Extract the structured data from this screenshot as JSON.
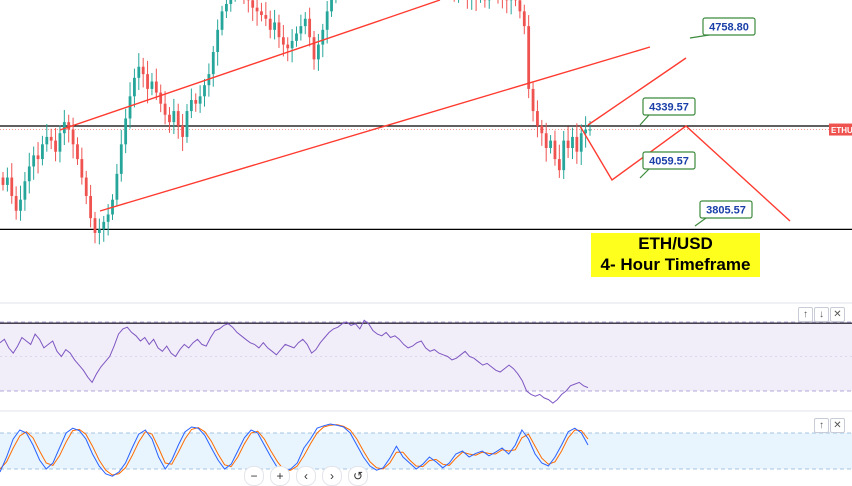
{
  "chart_data": {
    "type": "candlestick",
    "title": "ETH/USD",
    "subtitle": "4- Hour Timeframe",
    "symbol_tag": "ETHU",
    "levels": [
      {
        "label": "4758.80",
        "value": 4758.8
      },
      {
        "label": "4339.57",
        "value": 4339.57
      },
      {
        "label": "4059.57",
        "value": 4059.57
      },
      {
        "label": "3805.57",
        "value": 3805.57
      }
    ],
    "price_range": [
      3400,
      5200
    ],
    "candle_closes": [
      4180,
      4200,
      4150,
      4110,
      4140,
      4190,
      4230,
      4260,
      4250,
      4290,
      4310,
      4300,
      4270,
      4320,
      4350,
      4330,
      4290,
      4250,
      4200,
      4150,
      4090,
      4050,
      4060,
      4080,
      4100,
      4140,
      4210,
      4290,
      4360,
      4420,
      4470,
      4500,
      4480,
      4440,
      4460,
      4430,
      4400,
      4370,
      4350,
      4380,
      4340,
      4310,
      4380,
      4410,
      4400,
      4420,
      4450,
      4480,
      4540,
      4600,
      4650,
      4670,
      4700,
      4730,
      4720,
      4700,
      4680,
      4660,
      4650,
      4640,
      4630,
      4600,
      4620,
      4580,
      4560,
      4550,
      4570,
      4590,
      4610,
      4630,
      4580,
      4520,
      4560,
      4600,
      4650,
      4690,
      4720,
      4760,
      4800,
      4830,
      4850,
      4870,
      4860,
      4880,
      4840,
      4860,
      4850,
      4800,
      4830,
      4820,
      4870,
      4850,
      4790,
      4760,
      4780,
      4840,
      4810,
      4820,
      4800,
      4780,
      4700,
      4740,
      4720,
      4700,
      4740,
      4720,
      4690,
      4720,
      4690,
      4700,
      4680,
      4720,
      4740,
      4700,
      4690,
      4680,
      4700,
      4680,
      4650,
      4610,
      4440,
      4380,
      4340,
      4320,
      4280,
      4300,
      4250,
      4220,
      4300,
      4280,
      4310,
      4270,
      4320,
      4330,
      4330
    ],
    "projection_points": [
      4339.57,
      4059.57,
      4339.57,
      3805.57
    ],
    "indicators": [
      {
        "name": "RSI",
        "bounds": [
          30,
          70
        ],
        "values": [
          58,
          60,
          55,
          52,
          56,
          61,
          59,
          57,
          63,
          60,
          55,
          57,
          59,
          53,
          50,
          54,
          52,
          48,
          45,
          42,
          38,
          35,
          40,
          44,
          47,
          50,
          56,
          63,
          66,
          67,
          64,
          62,
          59,
          61,
          57,
          60,
          55,
          53,
          56,
          52,
          50,
          54,
          57,
          55,
          58,
          60,
          57,
          56,
          61,
          65,
          66,
          68,
          69,
          67,
          64,
          62,
          60,
          58,
          57,
          55,
          58,
          55,
          53,
          51,
          54,
          57,
          56,
          55,
          58,
          60,
          57,
          52,
          54,
          58,
          61,
          64,
          66,
          67,
          69,
          70,
          68,
          69,
          66,
          71,
          69,
          65,
          63,
          62,
          64,
          61,
          62,
          60,
          57,
          55,
          56,
          58,
          59,
          55,
          53,
          54,
          52,
          51,
          50,
          48,
          49,
          51,
          53,
          50,
          49,
          47,
          45,
          46,
          44,
          42,
          41,
          43,
          45,
          43,
          40,
          36,
          30,
          28,
          27,
          28,
          26,
          25,
          23,
          25,
          28,
          30,
          33,
          34,
          35,
          33,
          32
        ]
      },
      {
        "name": "Stochastic",
        "bounds": [
          20,
          80
        ],
        "k_values": [
          15,
          40,
          70,
          85,
          80,
          60,
          35,
          20,
          30,
          55,
          80,
          88,
          84,
          70,
          45,
          25,
          12,
          8,
          15,
          30,
          55,
          78,
          85,
          70,
          40,
          20,
          35,
          60,
          82,
          90,
          88,
          76,
          55,
          35,
          20,
          28,
          50,
          72,
          85,
          80,
          60,
          40,
          22,
          15,
          20,
          30,
          55,
          70,
          88,
          92,
          95,
          93,
          90,
          80,
          60,
          40,
          25,
          18,
          22,
          38,
          58,
          40,
          30,
          20,
          28,
          40,
          32,
          22,
          30,
          45,
          50,
          40,
          46,
          50,
          42,
          48,
          55,
          45,
          60,
          85,
          70,
          45,
          30,
          25,
          40,
          60,
          82,
          88,
          80,
          60
        ]
      },
      {
        "name": "Stochastic-D",
        "bounds": [
          20,
          80
        ],
        "k_values": [
          20,
          32,
          55,
          75,
          82,
          72,
          50,
          30,
          26,
          42,
          65,
          84,
          86,
          78,
          58,
          35,
          18,
          10,
          12,
          22,
          42,
          65,
          82,
          78,
          55,
          30,
          28,
          48,
          70,
          86,
          89,
          82,
          66,
          45,
          27,
          24,
          40,
          62,
          80,
          83,
          70,
          50,
          32,
          18,
          18,
          25,
          42,
          62,
          80,
          90,
          93,
          94,
          91,
          85,
          70,
          50,
          32,
          22,
          20,
          30,
          48,
          48,
          35,
          25,
          24,
          34,
          36,
          28,
          26,
          38,
          48,
          45,
          43,
          48,
          46,
          45,
          52,
          50,
          52,
          72,
          78,
          58,
          38,
          28,
          32,
          50,
          72,
          85,
          84,
          70
        ]
      }
    ],
    "colors": {
      "up": "#26a69a",
      "down": "#ef5350",
      "trend": "#ff3b30",
      "level": "#000000",
      "rsi": "#7e57c2",
      "stoch_k": "#2962ff",
      "stoch_d": "#ff6d00",
      "title_bg": "#ffff1e"
    }
  },
  "panes": {
    "rsi_buttons": [
      "↑",
      "↓",
      "✕"
    ],
    "stoch_buttons": [
      "↑",
      "✕"
    ]
  },
  "nav": {
    "buttons": [
      "−",
      "+",
      "‹",
      "›",
      "↺"
    ]
  }
}
